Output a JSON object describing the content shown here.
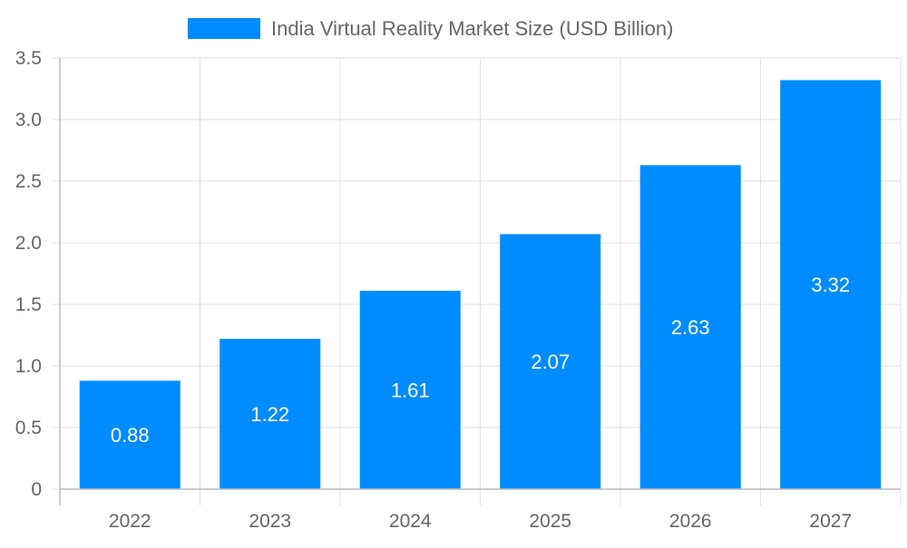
{
  "chart_data": {
    "type": "bar",
    "title": "",
    "xlabel": "",
    "ylabel": "",
    "categories": [
      "2022",
      "2023",
      "2024",
      "2025",
      "2026",
      "2027"
    ],
    "series": [
      {
        "name": "India Virtual Reality Market Size (USD Billion)",
        "values": [
          0.88,
          1.22,
          1.61,
          2.07,
          2.63,
          3.32
        ],
        "color": "#008cff"
      }
    ],
    "data_labels": [
      "0.88",
      "1.22",
      "1.61",
      "2.07",
      "2.63",
      "3.32"
    ],
    "ylim": [
      0,
      3.5
    ],
    "yticks": [
      "0",
      "0.5",
      "1.0",
      "1.5",
      "2.0",
      "2.5",
      "3.0",
      "3.5"
    ],
    "grid": true,
    "legend_position": "top"
  }
}
